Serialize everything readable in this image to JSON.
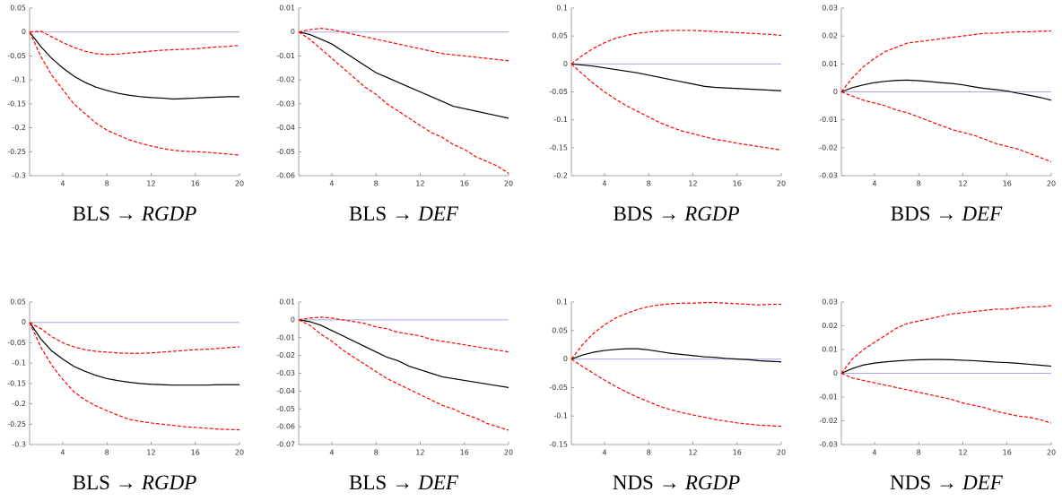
{
  "chart_data": [
    {
      "type": "line",
      "title": [
        "BLS",
        "→",
        "RGDP"
      ],
      "x": [
        1,
        2,
        3,
        4,
        5,
        6,
        7,
        8,
        9,
        10,
        11,
        12,
        13,
        14,
        15,
        16,
        17,
        18,
        19,
        20
      ],
      "xlim": [
        1,
        20
      ],
      "xticks": [
        4,
        8,
        12,
        16,
        20
      ],
      "ylim": [
        -0.3,
        0.05
      ],
      "yticks": [
        -0.3,
        -0.25,
        -0.2,
        -0.15,
        -0.1,
        -0.05,
        0,
        0.05
      ],
      "series": [
        {
          "color": "#000000",
          "dash": false,
          "values": [
            0,
            -0.03,
            -0.055,
            -0.075,
            -0.092,
            -0.105,
            -0.115,
            -0.122,
            -0.128,
            -0.132,
            -0.135,
            -0.137,
            -0.138,
            -0.14,
            -0.139,
            -0.138,
            -0.137,
            -0.136,
            -0.135,
            -0.135
          ]
        },
        {
          "color": "#ff0000",
          "dash": true,
          "values": [
            0,
            0.002,
            -0.01,
            -0.022,
            -0.032,
            -0.04,
            -0.045,
            -0.047,
            -0.046,
            -0.044,
            -0.042,
            -0.04,
            -0.038,
            -0.037,
            -0.036,
            -0.035,
            -0.033,
            -0.031,
            -0.03,
            -0.028
          ]
        },
        {
          "color": "#ff0000",
          "dash": true,
          "values": [
            0,
            -0.05,
            -0.09,
            -0.12,
            -0.15,
            -0.17,
            -0.19,
            -0.205,
            -0.215,
            -0.225,
            -0.232,
            -0.238,
            -0.243,
            -0.247,
            -0.249,
            -0.25,
            -0.251,
            -0.253,
            -0.255,
            -0.257
          ]
        }
      ]
    },
    {
      "type": "line",
      "title": [
        "BLS",
        "→",
        "DEF"
      ],
      "x": [
        1,
        2,
        3,
        4,
        5,
        6,
        7,
        8,
        9,
        10,
        11,
        12,
        13,
        14,
        15,
        16,
        17,
        18,
        19,
        20
      ],
      "xlim": [
        1,
        20
      ],
      "xticks": [
        4,
        8,
        12,
        16,
        20
      ],
      "ylim": [
        -0.06,
        0.01
      ],
      "yticks": [
        -0.06,
        -0.05,
        -0.04,
        -0.03,
        -0.02,
        -0.01,
        0,
        0.01
      ],
      "series": [
        {
          "color": "#000000",
          "dash": false,
          "values": [
            0,
            -0.001,
            -0.003,
            -0.005,
            -0.008,
            -0.011,
            -0.014,
            -0.017,
            -0.019,
            -0.021,
            -0.023,
            -0.025,
            -0.027,
            -0.029,
            -0.031,
            -0.032,
            -0.033,
            -0.034,
            -0.035,
            -0.036
          ]
        },
        {
          "color": "#ff0000",
          "dash": true,
          "values": [
            0,
            0.001,
            0.0015,
            0.001,
            0,
            -0.001,
            -0.002,
            -0.003,
            -0.004,
            -0.005,
            -0.006,
            -0.007,
            -0.008,
            -0.009,
            -0.0095,
            -0.01,
            -0.0105,
            -0.011,
            -0.0115,
            -0.012
          ]
        },
        {
          "color": "#ff0000",
          "dash": true,
          "values": [
            0,
            -0.003,
            -0.007,
            -0.011,
            -0.015,
            -0.019,
            -0.023,
            -0.026,
            -0.03,
            -0.033,
            -0.036,
            -0.039,
            -0.042,
            -0.044,
            -0.047,
            -0.049,
            -0.052,
            -0.054,
            -0.056,
            -0.059
          ]
        }
      ]
    },
    {
      "type": "line",
      "title": [
        "BDS",
        "→",
        "RGDP"
      ],
      "x": [
        1,
        2,
        3,
        4,
        5,
        6,
        7,
        8,
        9,
        10,
        11,
        12,
        13,
        14,
        15,
        16,
        17,
        18,
        19,
        20
      ],
      "xlim": [
        1,
        20
      ],
      "xticks": [
        4,
        8,
        12,
        16,
        20
      ],
      "ylim": [
        -0.2,
        0.1
      ],
      "yticks": [
        -0.2,
        -0.15,
        -0.1,
        -0.05,
        0,
        0.05,
        0.1
      ],
      "series": [
        {
          "color": "#000000",
          "dash": false,
          "values": [
            0,
            -0.002,
            -0.004,
            -0.007,
            -0.01,
            -0.013,
            -0.016,
            -0.02,
            -0.024,
            -0.028,
            -0.032,
            -0.036,
            -0.04,
            -0.042,
            -0.043,
            -0.044,
            -0.045,
            -0.046,
            -0.047,
            -0.048
          ]
        },
        {
          "color": "#ff0000",
          "dash": true,
          "values": [
            0,
            0.015,
            0.028,
            0.038,
            0.046,
            0.051,
            0.055,
            0.057,
            0.059,
            0.06,
            0.06,
            0.06,
            0.059,
            0.058,
            0.057,
            0.056,
            0.055,
            0.054,
            0.053,
            0.051
          ]
        },
        {
          "color": "#ff0000",
          "dash": true,
          "values": [
            0,
            -0.018,
            -0.035,
            -0.05,
            -0.063,
            -0.075,
            -0.085,
            -0.095,
            -0.105,
            -0.113,
            -0.12,
            -0.125,
            -0.13,
            -0.135,
            -0.138,
            -0.142,
            -0.145,
            -0.148,
            -0.151,
            -0.154
          ]
        }
      ]
    },
    {
      "type": "line",
      "title": [
        "BDS",
        "→",
        "DEF"
      ],
      "x": [
        1,
        2,
        3,
        4,
        5,
        6,
        7,
        8,
        9,
        10,
        11,
        12,
        13,
        14,
        15,
        16,
        17,
        18,
        19,
        20
      ],
      "xlim": [
        1,
        20
      ],
      "xticks": [
        4,
        8,
        12,
        16,
        20
      ],
      "ylim": [
        -0.03,
        0.03
      ],
      "yticks": [
        -0.03,
        -0.02,
        -0.01,
        0,
        0.01,
        0.02,
        0.03
      ],
      "series": [
        {
          "color": "#000000",
          "dash": false,
          "values": [
            0,
            0.0015,
            0.0025,
            0.0033,
            0.0038,
            0.0041,
            0.0042,
            0.004,
            0.0037,
            0.0033,
            0.003,
            0.0025,
            0.0018,
            0.0012,
            0.0008,
            0.0003,
            -0.0005,
            -0.0012,
            -0.002,
            -0.003
          ]
        },
        {
          "color": "#ff0000",
          "dash": true,
          "values": [
            0,
            0.005,
            0.009,
            0.012,
            0.0145,
            0.016,
            0.0175,
            0.018,
            0.0185,
            0.019,
            0.0195,
            0.02,
            0.0205,
            0.021,
            0.021,
            0.0213,
            0.0215,
            0.0215,
            0.0217,
            0.0218
          ]
        },
        {
          "color": "#ff0000",
          "dash": true,
          "values": [
            0,
            -0.0015,
            -0.003,
            -0.004,
            -0.005,
            -0.0065,
            -0.0075,
            -0.009,
            -0.0105,
            -0.012,
            -0.0135,
            -0.0145,
            -0.0155,
            -0.017,
            -0.0185,
            -0.0195,
            -0.0205,
            -0.022,
            -0.0235,
            -0.025
          ]
        }
      ]
    },
    {
      "type": "line",
      "title": [
        "BLS",
        "→",
        "RGDP"
      ],
      "x": [
        1,
        2,
        3,
        4,
        5,
        6,
        7,
        8,
        9,
        10,
        11,
        12,
        13,
        14,
        15,
        16,
        17,
        18,
        19,
        20
      ],
      "xlim": [
        1,
        20
      ],
      "xticks": [
        4,
        8,
        12,
        16,
        20
      ],
      "ylim": [
        -0.3,
        0.05
      ],
      "yticks": [
        -0.3,
        -0.25,
        -0.2,
        -0.15,
        -0.1,
        -0.05,
        0,
        0.05
      ],
      "series": [
        {
          "color": "#000000",
          "dash": false,
          "values": [
            0,
            -0.04,
            -0.07,
            -0.09,
            -0.108,
            -0.12,
            -0.13,
            -0.138,
            -0.143,
            -0.147,
            -0.15,
            -0.152,
            -0.153,
            -0.154,
            -0.154,
            -0.154,
            -0.154,
            -0.153,
            -0.153,
            -0.153
          ]
        },
        {
          "color": "#ff0000",
          "dash": true,
          "values": [
            0,
            -0.015,
            -0.035,
            -0.05,
            -0.06,
            -0.067,
            -0.071,
            -0.073,
            -0.075,
            -0.076,
            -0.076,
            -0.075,
            -0.073,
            -0.071,
            -0.069,
            -0.067,
            -0.066,
            -0.064,
            -0.062,
            -0.06
          ]
        },
        {
          "color": "#ff0000",
          "dash": true,
          "values": [
            0,
            -0.06,
            -0.105,
            -0.14,
            -0.17,
            -0.19,
            -0.205,
            -0.217,
            -0.228,
            -0.238,
            -0.243,
            -0.247,
            -0.25,
            -0.253,
            -0.256,
            -0.258,
            -0.26,
            -0.262,
            -0.263,
            -0.264
          ]
        }
      ]
    },
    {
      "type": "line",
      "title": [
        "BLS",
        "→",
        "DEF"
      ],
      "x": [
        1,
        2,
        3,
        4,
        5,
        6,
        7,
        8,
        9,
        10,
        11,
        12,
        13,
        14,
        15,
        16,
        17,
        18,
        19,
        20
      ],
      "xlim": [
        1,
        20
      ],
      "xticks": [
        4,
        8,
        12,
        16,
        20
      ],
      "ylim": [
        -0.07,
        0.01
      ],
      "yticks": [
        -0.07,
        -0.06,
        -0.05,
        -0.04,
        -0.03,
        -0.02,
        -0.01,
        0,
        0.01
      ],
      "series": [
        {
          "color": "#000000",
          "dash": false,
          "values": [
            0,
            -0.001,
            -0.003,
            -0.006,
            -0.009,
            -0.012,
            -0.015,
            -0.018,
            -0.021,
            -0.023,
            -0.026,
            -0.028,
            -0.03,
            -0.032,
            -0.033,
            -0.034,
            -0.035,
            -0.036,
            -0.037,
            -0.038
          ]
        },
        {
          "color": "#ff0000",
          "dash": true,
          "values": [
            0,
            0.001,
            0.0015,
            0.001,
            0,
            -0.001,
            -0.002,
            -0.004,
            -0.005,
            -0.007,
            -0.008,
            -0.009,
            -0.011,
            -0.012,
            -0.013,
            -0.014,
            -0.015,
            -0.016,
            -0.017,
            -0.018
          ]
        },
        {
          "color": "#ff0000",
          "dash": true,
          "values": [
            0,
            -0.003,
            -0.008,
            -0.012,
            -0.017,
            -0.021,
            -0.025,
            -0.029,
            -0.033,
            -0.036,
            -0.039,
            -0.042,
            -0.045,
            -0.048,
            -0.05,
            -0.053,
            -0.055,
            -0.058,
            -0.06,
            -0.062
          ]
        }
      ]
    },
    {
      "type": "line",
      "title": [
        "NDS",
        "→",
        "RGDP"
      ],
      "x": [
        1,
        2,
        3,
        4,
        5,
        6,
        7,
        8,
        9,
        10,
        11,
        12,
        13,
        14,
        15,
        16,
        17,
        18,
        19,
        20
      ],
      "xlim": [
        1,
        20
      ],
      "xticks": [
        4,
        8,
        12,
        16,
        20
      ],
      "ylim": [
        -0.15,
        0.1
      ],
      "yticks": [
        -0.15,
        -0.1,
        -0.05,
        0,
        0.05,
        0.1
      ],
      "series": [
        {
          "color": "#000000",
          "dash": false,
          "values": [
            0,
            0.007,
            0.012,
            0.015,
            0.017,
            0.018,
            0.018,
            0.016,
            0.013,
            0.01,
            0.008,
            0.006,
            0.004,
            0.003,
            0.001,
            0,
            -0.001,
            -0.003,
            -0.004,
            -0.005
          ]
        },
        {
          "color": "#ff0000",
          "dash": true,
          "values": [
            0,
            0.025,
            0.045,
            0.06,
            0.072,
            0.08,
            0.087,
            0.092,
            0.095,
            0.097,
            0.098,
            0.098,
            0.099,
            0.099,
            0.098,
            0.097,
            0.096,
            0.095,
            0.096,
            0.096
          ]
        },
        {
          "color": "#ff0000",
          "dash": true,
          "values": [
            0,
            -0.013,
            -0.025,
            -0.037,
            -0.048,
            -0.058,
            -0.067,
            -0.075,
            -0.083,
            -0.089,
            -0.094,
            -0.098,
            -0.102,
            -0.106,
            -0.109,
            -0.112,
            -0.114,
            -0.116,
            -0.117,
            -0.118
          ]
        }
      ]
    },
    {
      "type": "line",
      "title": [
        "NDS",
        "→",
        "DEF"
      ],
      "x": [
        1,
        2,
        3,
        4,
        5,
        6,
        7,
        8,
        9,
        10,
        11,
        12,
        13,
        14,
        15,
        16,
        17,
        18,
        19,
        20
      ],
      "xlim": [
        1,
        20
      ],
      "xticks": [
        4,
        8,
        12,
        16,
        20
      ],
      "ylim": [
        -0.03,
        0.03
      ],
      "yticks": [
        -0.03,
        -0.02,
        -0.01,
        0,
        0.01,
        0.02,
        0.03
      ],
      "series": [
        {
          "color": "#000000",
          "dash": false,
          "values": [
            0,
            0.002,
            0.0035,
            0.0043,
            0.0048,
            0.0052,
            0.0055,
            0.0057,
            0.0058,
            0.0058,
            0.0057,
            0.0055,
            0.0053,
            0.005,
            0.0047,
            0.0045,
            0.0042,
            0.0038,
            0.0034,
            0.003
          ]
        },
        {
          "color": "#ff0000",
          "dash": true,
          "values": [
            0,
            0.006,
            0.01,
            0.013,
            0.016,
            0.019,
            0.021,
            0.022,
            0.023,
            0.024,
            0.025,
            0.0255,
            0.026,
            0.0265,
            0.027,
            0.027,
            0.0275,
            0.028,
            0.028,
            0.0285
          ]
        },
        {
          "color": "#ff0000",
          "dash": true,
          "values": [
            0,
            -0.002,
            -0.003,
            -0.004,
            -0.005,
            -0.006,
            -0.007,
            -0.008,
            -0.009,
            -0.01,
            -0.011,
            -0.0125,
            -0.0135,
            -0.0145,
            -0.016,
            -0.017,
            -0.018,
            -0.0185,
            -0.0195,
            -0.021
          ]
        }
      ]
    }
  ]
}
